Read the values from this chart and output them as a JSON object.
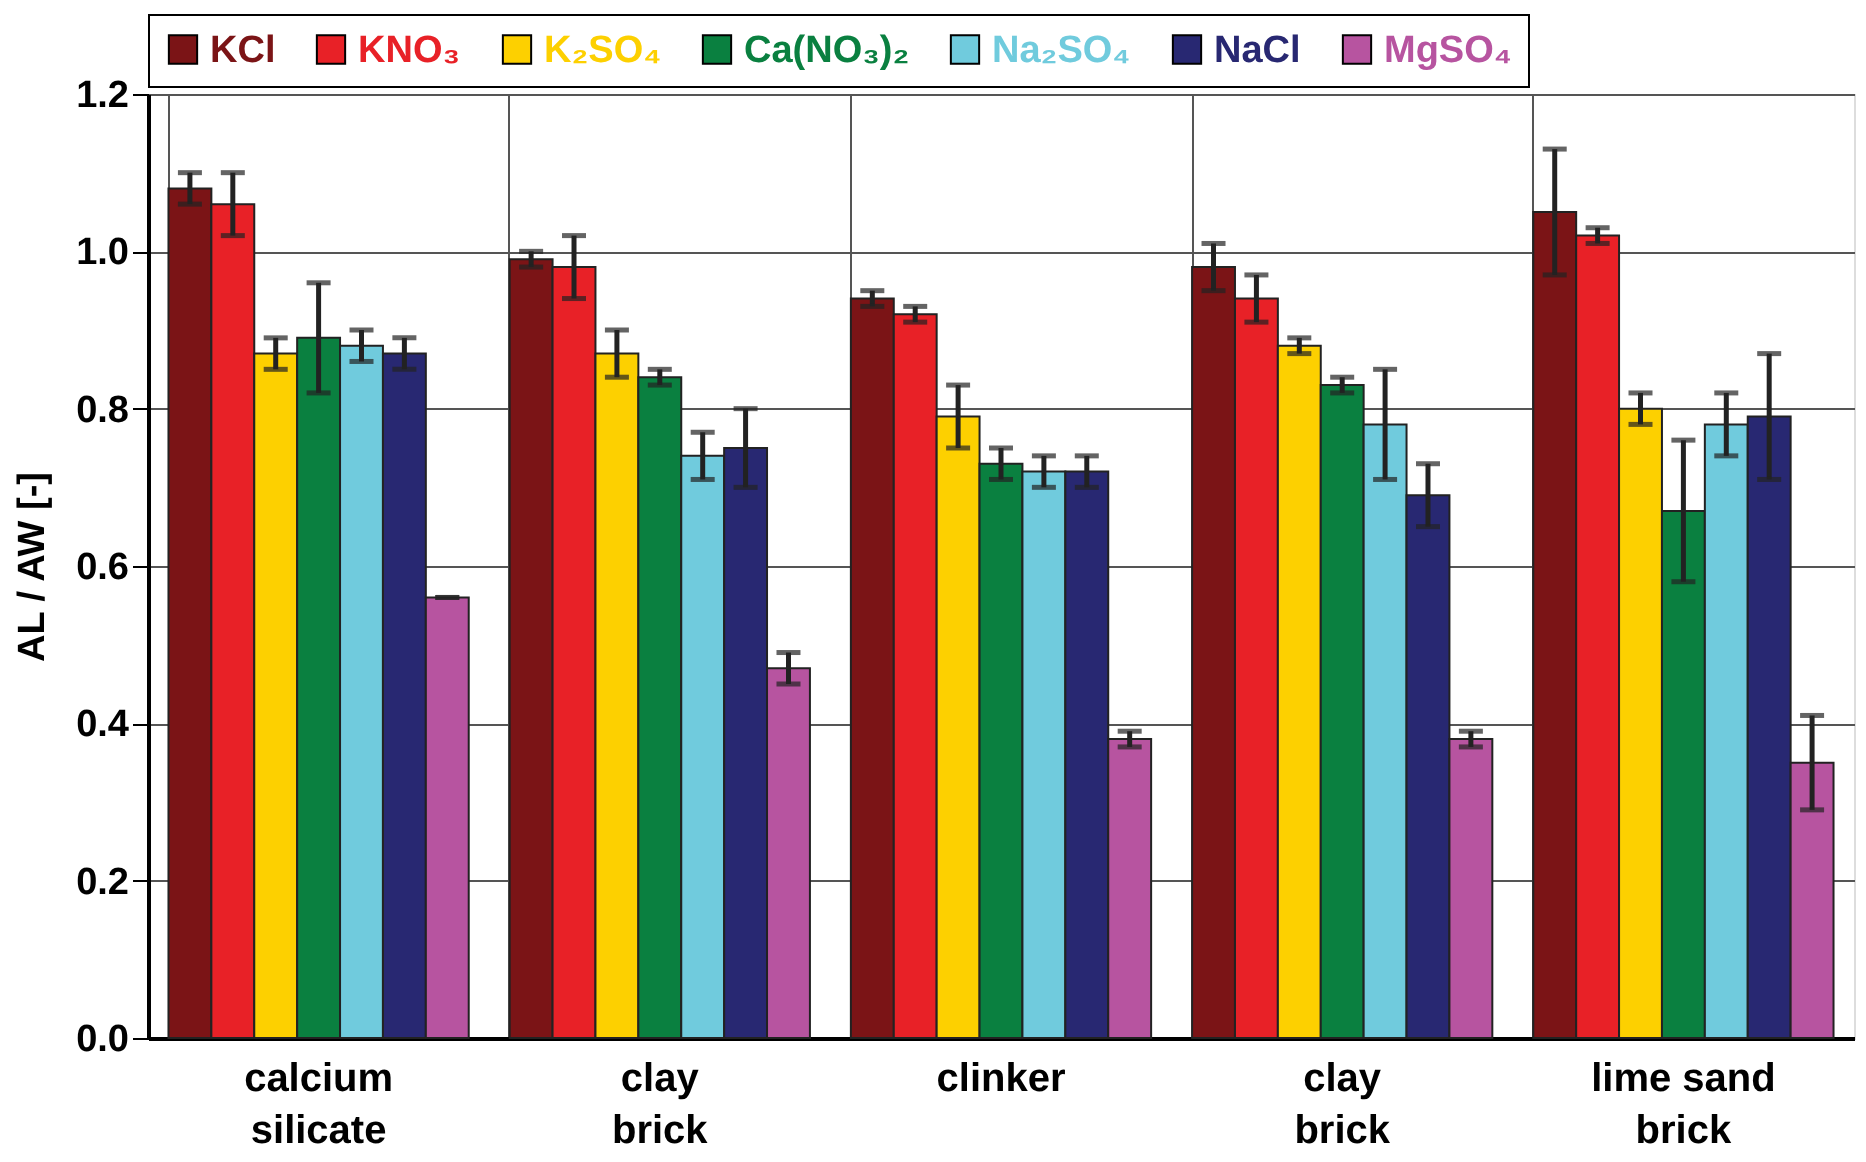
{
  "chart_data": {
    "type": "bar",
    "ylabel": "AL / AW [-]",
    "categories": [
      "calcium silicate",
      "clay brick",
      "clinker",
      "clay brick",
      "lime sand brick"
    ],
    "series": [
      {
        "name": "KCl",
        "color": "#7b1416",
        "values": [
          1.08,
          0.99,
          0.94,
          0.98,
          1.05
        ],
        "errors": [
          0.02,
          0.01,
          0.01,
          0.03,
          0.08
        ]
      },
      {
        "name": "KNO₃",
        "color": "#e82127",
        "values": [
          1.06,
          0.98,
          0.92,
          0.94,
          1.02
        ],
        "errors": [
          0.04,
          0.04,
          0.01,
          0.03,
          0.01
        ]
      },
      {
        "name": "K₂SO₄",
        "color": "#fdd000",
        "values": [
          0.87,
          0.87,
          0.79,
          0.88,
          0.8
        ],
        "errors": [
          0.02,
          0.03,
          0.04,
          0.01,
          0.02
        ]
      },
      {
        "name": "Ca(NO₃)₂",
        "color": "#0a8040",
        "values": [
          0.89,
          0.84,
          0.73,
          0.83,
          0.67
        ],
        "errors": [
          0.07,
          0.01,
          0.02,
          0.01,
          0.09
        ]
      },
      {
        "name": "Na₂SO₄",
        "color": "#70cbdd",
        "values": [
          0.88,
          0.74,
          0.72,
          0.78,
          0.78
        ],
        "errors": [
          0.02,
          0.03,
          0.02,
          0.07,
          0.04
        ]
      },
      {
        "name": "NaCl",
        "color": "#282872",
        "values": [
          0.87,
          0.75,
          0.72,
          0.69,
          0.79
        ],
        "errors": [
          0.02,
          0.05,
          0.02,
          0.04,
          0.08
        ]
      },
      {
        "name": "MgSO₄",
        "color": "#b754a0",
        "values": [
          0.56,
          0.47,
          0.38,
          0.38,
          0.35
        ],
        "errors": [
          0,
          0.02,
          0.01,
          0.01,
          0.06
        ]
      }
    ],
    "ylim": [
      0,
      1.2
    ],
    "yticks": [
      {
        "value": 0,
        "label": "0.0"
      },
      0.2,
      0.4,
      0.6,
      0.8,
      {
        "value": 1,
        "label": "1.0"
      },
      1.2
    ],
    "grid": true,
    "legend": "top"
  }
}
